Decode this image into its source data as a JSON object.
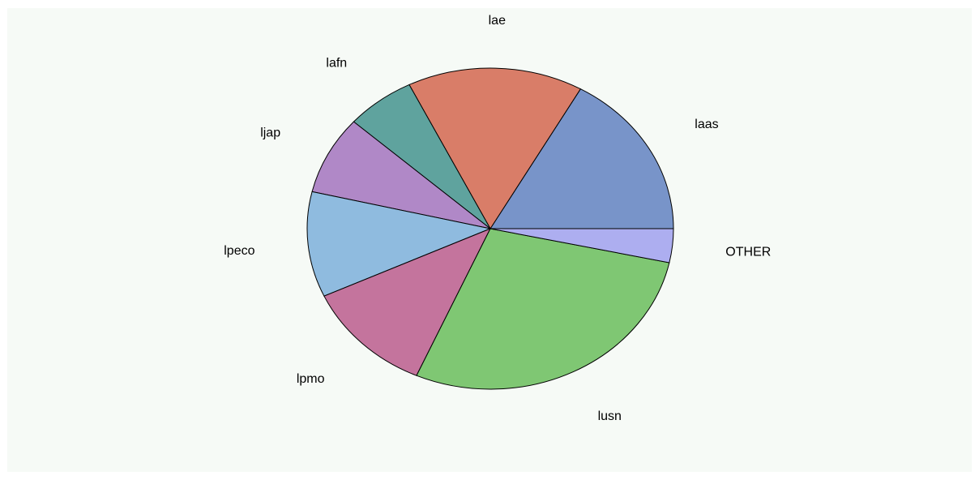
{
  "chart_data": {
    "type": "pie",
    "title": "",
    "start_angle_deg": 0,
    "direction": "counterclockwise",
    "slices": [
      {
        "label": "laas",
        "value": 16.8,
        "color": "#7894c9"
      },
      {
        "label": "lae",
        "value": 15.5,
        "color": "#d97d68"
      },
      {
        "label": "lafn",
        "value": 6.1,
        "color": "#5fa39e"
      },
      {
        "label": "ljap",
        "value": 7.9,
        "color": "#b088c7"
      },
      {
        "label": "lpeco",
        "value": 10.6,
        "color": "#8fbbdf"
      },
      {
        "label": "lpmo",
        "value": 11.5,
        "color": "#c4749d"
      },
      {
        "label": "lusn",
        "value": 28.2,
        "color": "#7fc773"
      },
      {
        "label": "OTHER",
        "value": 3.4,
        "color": "#adaef0"
      }
    ]
  }
}
